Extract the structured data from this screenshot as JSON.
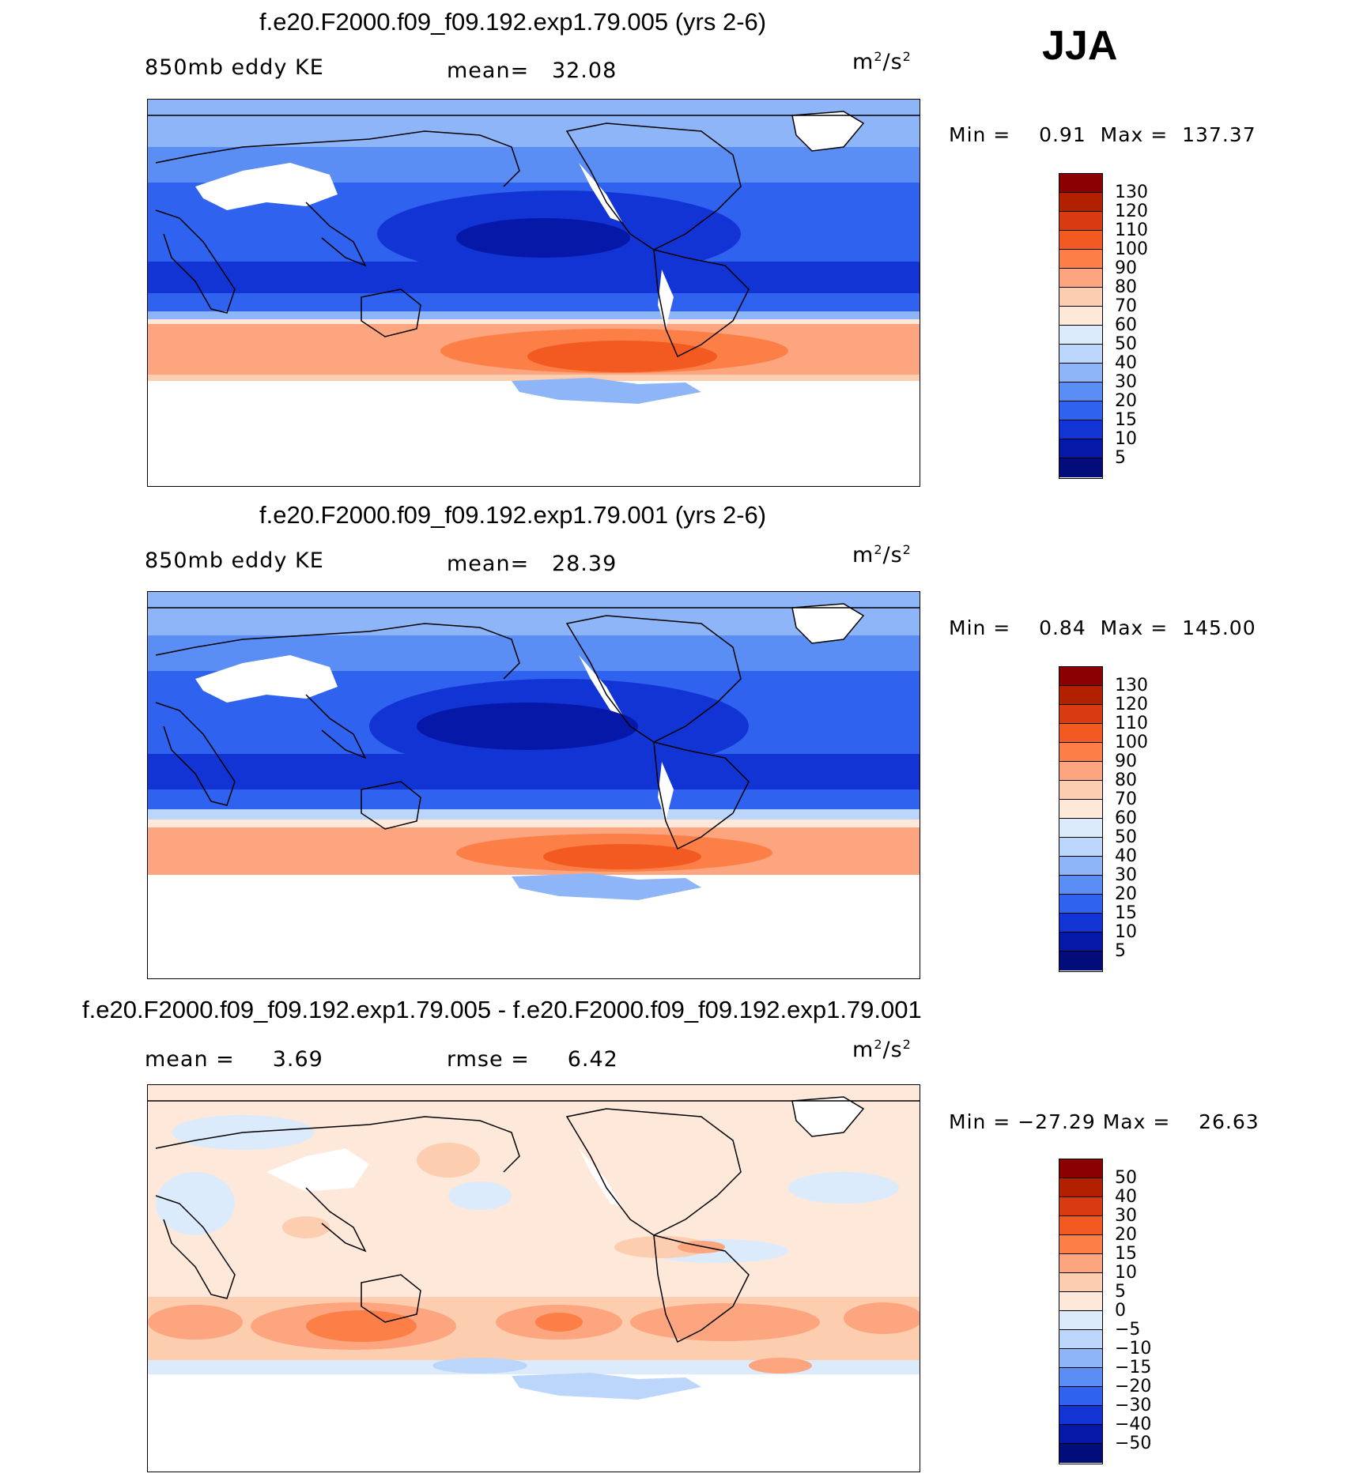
{
  "season": "JJA",
  "unit_base": "m",
  "unit_exp": "2",
  "unit_tail": "/s",
  "unit_exp2": "2",
  "panels": [
    {
      "title": "f.e20.F2000.f09_f09.192.exp1.79.005 (yrs 2-6)",
      "left_label": "850mb  eddy  KE",
      "stat_label": "mean=",
      "stat_value": "32.08",
      "min_label": "Min  =",
      "min_value": "0.91",
      "max_label": "Max  =",
      "max_value": "137.37",
      "colorbar_labels": [
        "130",
        "120",
        "110",
        "100",
        "90",
        "80",
        "70",
        "60",
        "50",
        "40",
        "30",
        "20",
        "15",
        "10",
        "5"
      ]
    },
    {
      "title": "f.e20.F2000.f09_f09.192.exp1.79.001 (yrs 2-6)",
      "left_label": "850mb  eddy  KE",
      "stat_label": "mean=",
      "stat_value": "28.39",
      "min_label": "Min  =",
      "min_value": "0.84",
      "max_label": "Max  =",
      "max_value": "145.00",
      "colorbar_labels": [
        "130",
        "120",
        "110",
        "100",
        "90",
        "80",
        "70",
        "60",
        "50",
        "40",
        "30",
        "20",
        "15",
        "10",
        "5"
      ]
    },
    {
      "title": "f.e20.F2000.f09_f09.192.exp1.79.005 - f.e20.F2000.f09_f09.192.exp1.79.001",
      "left_label": "mean  =",
      "left_value": "3.69",
      "stat_label": "rmse  =",
      "stat_value": "6.42",
      "min_label": "Min  =",
      "min_value": "−27.29",
      "max_label": "Max  =",
      "max_value": "26.63",
      "colorbar_labels": [
        "50",
        "40",
        "30",
        "20",
        "15",
        "10",
        "5",
        "0",
        "−5",
        "−10",
        "−15",
        "−20",
        "−30",
        "−40",
        "−50"
      ]
    }
  ],
  "colors": {
    "seq": [
      "#8b0000",
      "#b22000",
      "#d93a10",
      "#f25a22",
      "#fc7f48",
      "#fca57e",
      "#fdcdb0",
      "#fde8da",
      "#dbebfb",
      "#bcd6fb",
      "#8eb5f7",
      "#5a8ef5",
      "#2f62ee",
      "#1334d4",
      "#0618a8",
      "#020d7a"
    ],
    "div": [
      "#8b0000",
      "#b22000",
      "#d93a10",
      "#f25a22",
      "#fc7f48",
      "#fca57e",
      "#fdcdb0",
      "#fde8da",
      "#dbebfb",
      "#bcd6fb",
      "#8eb5f7",
      "#5a8ef5",
      "#2f62ee",
      "#1334d4",
      "#0618a8",
      "#020d7a"
    ]
  }
}
